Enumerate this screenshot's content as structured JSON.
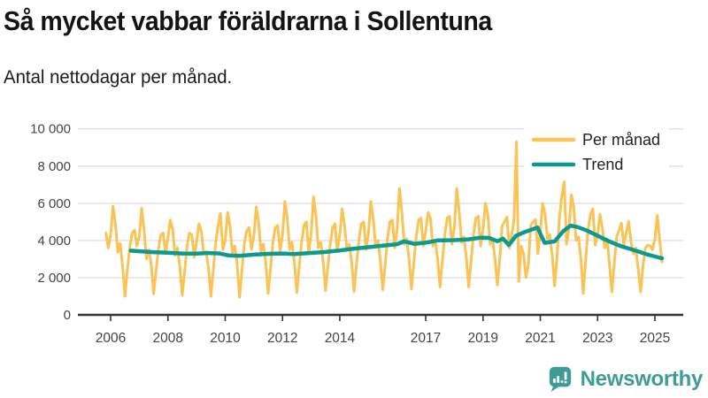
{
  "header": {
    "title": "Så mycket vabbar föräldrarna i Sollentuna",
    "subtitle": "Antal nettodagar per månad."
  },
  "chart_data": {
    "type": "line",
    "title": "Så mycket vabbar föräldrarna i Sollentuna",
    "subtitle": "Antal nettodagar per månad.",
    "xlabel": "",
    "ylabel": "Antal nettodagar",
    "ylim": [
      0,
      10000
    ],
    "y_ticks": [
      0,
      2000,
      4000,
      6000,
      8000,
      10000
    ],
    "y_tick_labels": [
      "0",
      "2 000",
      "4 000",
      "6 000",
      "8 000",
      "10 000"
    ],
    "x_ticks": [
      2006,
      2008,
      2010,
      2012,
      2014,
      2017,
      2019,
      2021,
      2023,
      2025
    ],
    "grid": true,
    "legend_position": "top-right",
    "legend": [
      {
        "label": "Per månad",
        "color": "#fac355"
      },
      {
        "label": "Trend",
        "color": "#0d9a8e"
      }
    ],
    "series": [
      {
        "name": "Per månad",
        "color": "#fac355",
        "kind": "monthly",
        "start_year_decimal": 2005.8333,
        "step_years": 0.0833333,
        "values": [
          4400,
          3600,
          4300,
          5830,
          4900,
          3370,
          3840,
          2600,
          1000,
          2420,
          3600,
          4400,
          4550,
          3700,
          4220,
          5730,
          4550,
          3000,
          3500,
          2700,
          1130,
          2300,
          3500,
          4300,
          4400,
          3300,
          4100,
          5100,
          4600,
          3200,
          3600,
          2600,
          1050,
          2300,
          3700,
          4400,
          4300,
          3100,
          3900,
          4900,
          4500,
          3300,
          3400,
          2500,
          1000,
          2400,
          3900,
          4800,
          5450,
          3500,
          4000,
          5500,
          4800,
          3300,
          3700,
          2700,
          950,
          2400,
          3800,
          4500,
          4700,
          3500,
          4200,
          5800,
          5000,
          3400,
          3800,
          2800,
          1150,
          2500,
          3900,
          4700,
          4800,
          3400,
          4300,
          6100,
          5200,
          3500,
          3900,
          2800,
          1200,
          2600,
          3900,
          4800,
          5000,
          3300,
          4400,
          6350,
          5300,
          3600,
          3900,
          2900,
          1300,
          2600,
          3800,
          4700,
          4900,
          3400,
          4300,
          5700,
          4800,
          3500,
          3800,
          2800,
          1250,
          2700,
          4000,
          4900,
          5000,
          3500,
          4400,
          6100,
          5200,
          3700,
          4000,
          2900,
          1350,
          2700,
          4100,
          5000,
          5100,
          3600,
          4600,
          6800,
          5500,
          3800,
          4100,
          3000,
          1400,
          2800,
          4200,
          5100,
          5200,
          3700,
          4500,
          5500,
          5200,
          3700,
          4000,
          3000,
          1500,
          2900,
          4300,
          5200,
          5300,
          3800,
          4700,
          6800,
          5600,
          3900,
          4200,
          3100,
          1500,
          2900,
          4300,
          5200,
          5300,
          3700,
          4600,
          6000,
          5400,
          3800,
          4100,
          3000,
          1600,
          3000,
          4800,
          5000,
          5260,
          3600,
          4300,
          5100,
          9300,
          1800,
          3700,
          3300,
          2000,
          2700,
          4800,
          5000,
          5120,
          3300,
          4500,
          6000,
          5400,
          4100,
          4300,
          3200,
          1560,
          3100,
          5200,
          6400,
          7150,
          3800,
          4600,
          6450,
          5800,
          4000,
          4200,
          3000,
          1150,
          3000,
          4600,
          5400,
          5700,
          3750,
          4300,
          5400,
          4700,
          3600,
          4080,
          2700,
          1230,
          2800,
          4200,
          4550,
          4930,
          3750,
          4400,
          5020,
          3930,
          3270,
          3600,
          2500,
          1230,
          2600,
          3600,
          3750,
          3700,
          3500,
          4100,
          5350,
          4000,
          2850
        ]
      },
      {
        "name": "Trend",
        "color": "#0d9a8e",
        "kind": "points",
        "points": [
          [
            2006.7,
            3450
          ],
          [
            2007.0,
            3420
          ],
          [
            2007.5,
            3370
          ],
          [
            2008.0,
            3340
          ],
          [
            2008.5,
            3300
          ],
          [
            2009.0,
            3290
          ],
          [
            2009.4,
            3330
          ],
          [
            2009.8,
            3300
          ],
          [
            2010.1,
            3200
          ],
          [
            2010.5,
            3170
          ],
          [
            2011.0,
            3240
          ],
          [
            2011.5,
            3280
          ],
          [
            2012.0,
            3300
          ],
          [
            2012.4,
            3270
          ],
          [
            2013.0,
            3330
          ],
          [
            2013.5,
            3380
          ],
          [
            2014.0,
            3460
          ],
          [
            2014.5,
            3560
          ],
          [
            2015.0,
            3640
          ],
          [
            2015.5,
            3720
          ],
          [
            2016.0,
            3800
          ],
          [
            2016.25,
            3950
          ],
          [
            2016.6,
            3820
          ],
          [
            2017.0,
            3880
          ],
          [
            2017.4,
            4000
          ],
          [
            2018.0,
            4020
          ],
          [
            2018.5,
            4060
          ],
          [
            2018.9,
            4150
          ],
          [
            2019.2,
            4140
          ],
          [
            2019.5,
            3960
          ],
          [
            2019.7,
            4100
          ],
          [
            2019.9,
            3750
          ],
          [
            2020.15,
            4250
          ],
          [
            2020.45,
            4450
          ],
          [
            2020.9,
            4700
          ],
          [
            2021.15,
            3870
          ],
          [
            2021.5,
            3950
          ],
          [
            2021.8,
            4500
          ],
          [
            2022.05,
            4800
          ],
          [
            2022.3,
            4720
          ],
          [
            2022.6,
            4550
          ],
          [
            2022.9,
            4330
          ],
          [
            2023.2,
            4100
          ],
          [
            2023.5,
            3890
          ],
          [
            2023.8,
            3700
          ],
          [
            2024.1,
            3560
          ],
          [
            2024.4,
            3420
          ],
          [
            2024.7,
            3260
          ],
          [
            2025.0,
            3140
          ],
          [
            2025.25,
            3040
          ]
        ]
      }
    ]
  },
  "footer": {
    "brand": "Newsworthy",
    "brand_color": "#3d9c94"
  },
  "colors": {
    "background": "#ffffff",
    "monthly_line": "#fac355",
    "trend_line": "#0d9a8e",
    "gridline": "#e2e2e2",
    "axis": "#333333",
    "tick_label": "#444444",
    "legend_text": "#222222",
    "title_text": "#141414"
  }
}
